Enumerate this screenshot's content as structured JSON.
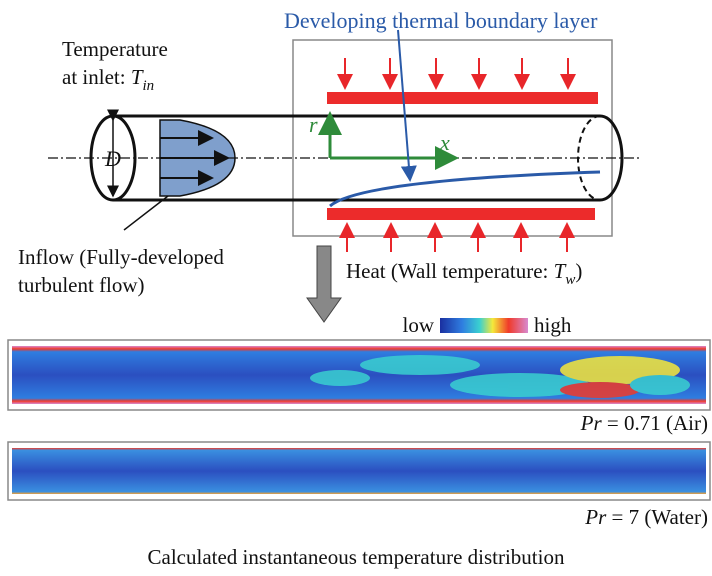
{
  "boundary_layer_label": "Developing thermal boundary layer",
  "inlet_label": {
    "line1": "Temperature",
    "line2": "at inlet: ",
    "symbol": "T",
    "subscript": "in"
  },
  "diameter_label": "D",
  "r_axis_label": "r",
  "x_axis_label": "x",
  "inflow_label": {
    "line1": "Inflow (Fully-developed",
    "line2": "turbulent flow)"
  },
  "heat_label": {
    "text": "Heat (Wall temperature: ",
    "symbol": "T",
    "subscript": "w",
    "end": ")"
  },
  "colorbar": {
    "low": "low",
    "high": "high"
  },
  "fields": [
    {
      "symbol": "Pr",
      "text": " = 0.71 (Air)"
    },
    {
      "symbol": "Pr",
      "text": " = 7 (Water)"
    }
  ],
  "caption": "Calculated instantaneous temperature distribution"
}
